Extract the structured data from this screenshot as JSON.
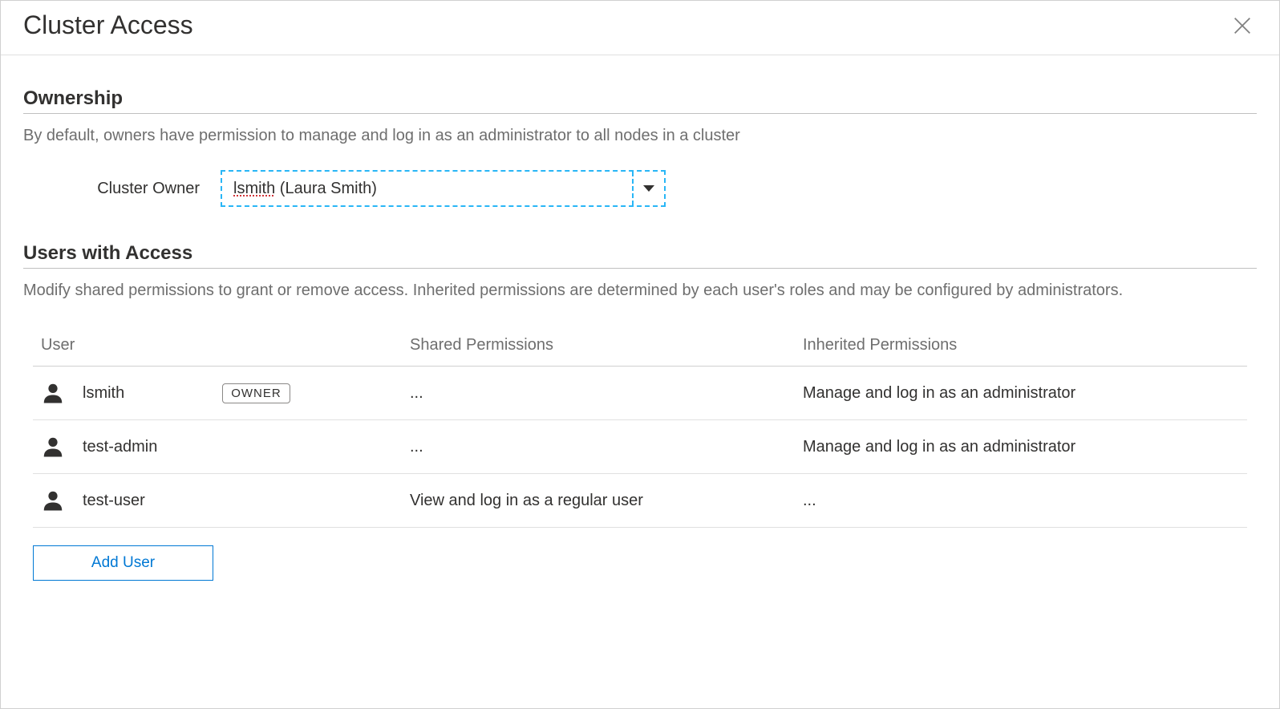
{
  "dialog": {
    "title": "Cluster Access"
  },
  "ownership": {
    "heading": "Ownership",
    "description": "By default, owners have permission to manage and log in as an administrator to all nodes in a cluster",
    "owner_label": "Cluster Owner",
    "selected_owner_username": "lsmith",
    "selected_owner_rest": " (Laura Smith)"
  },
  "users_section": {
    "heading": "Users with Access",
    "description": "Modify shared permissions to grant or remove access. Inherited permissions are determined by each user's roles and may be configured by administrators."
  },
  "table": {
    "columns": {
      "user": "User",
      "shared": "Shared Permissions",
      "inherited": "Inherited Permissions"
    },
    "owner_badge": "OWNER",
    "rows": [
      {
        "username": "lsmith",
        "is_owner": true,
        "shared": "...",
        "inherited": "Manage and log in as an administrator"
      },
      {
        "username": "test-admin",
        "is_owner": false,
        "shared": "...",
        "inherited": "Manage and log in as an administrator"
      },
      {
        "username": "test-user",
        "is_owner": false,
        "shared": "View and log in as a regular user",
        "inherited": "..."
      }
    ]
  },
  "buttons": {
    "add_user": "Add User"
  }
}
